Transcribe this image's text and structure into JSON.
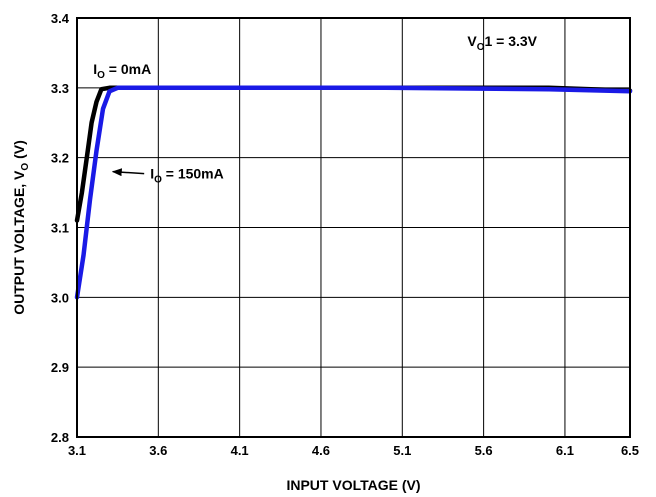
{
  "chart_data": {
    "type": "line",
    "xlabel": "INPUT VOLTAGE (V)",
    "ylabel": {
      "main": "OUTPUT VOLTAGE, V",
      "sub": "O",
      "unit": " (V)"
    },
    "xlim": [
      3.1,
      6.5
    ],
    "ylim": [
      2.8,
      3.4
    ],
    "xticks": [
      3.1,
      3.6,
      4.1,
      4.6,
      5.1,
      5.6,
      6.1,
      6.5
    ],
    "xtick_labels": [
      "3.1",
      "3.6",
      "4.1",
      "4.6",
      "5.1",
      "5.6",
      "6.1",
      "6.5"
    ],
    "yticks": [
      2.8,
      2.9,
      3.0,
      3.1,
      3.2,
      3.3,
      3.4
    ],
    "ytick_labels": [
      "2.8",
      "2.9",
      "3.0",
      "3.1",
      "3.2",
      "3.3",
      "3.4"
    ],
    "grid": true,
    "series": [
      {
        "name": {
          "main": "I",
          "sub": "O",
          "rest": " = 0mA"
        },
        "color": "#000000",
        "points": [
          [
            3.1,
            3.11
          ],
          [
            3.13,
            3.15
          ],
          [
            3.16,
            3.2
          ],
          [
            3.19,
            3.25
          ],
          [
            3.22,
            3.28
          ],
          [
            3.25,
            3.298
          ],
          [
            3.3,
            3.3
          ],
          [
            4.0,
            3.3
          ],
          [
            5.0,
            3.3
          ],
          [
            6.0,
            3.3
          ],
          [
            6.5,
            3.296
          ]
        ]
      },
      {
        "name": {
          "main": "I",
          "sub": "O",
          "rest": " = 150mA"
        },
        "color": "#1a1ae6",
        "points": [
          [
            3.1,
            3.0
          ],
          [
            3.14,
            3.06
          ],
          [
            3.18,
            3.14
          ],
          [
            3.22,
            3.21
          ],
          [
            3.26,
            3.27
          ],
          [
            3.3,
            3.295
          ],
          [
            3.35,
            3.3
          ],
          [
            4.0,
            3.3
          ],
          [
            5.0,
            3.3
          ],
          [
            6.0,
            3.298
          ],
          [
            6.5,
            3.295
          ]
        ]
      }
    ],
    "annotations": [
      {
        "main": "V",
        "sub": "O",
        "rest": "1 = 3.3V",
        "x": 5.5,
        "y": 3.36
      },
      {
        "main": "I",
        "sub": "O",
        "rest": " = 0mA",
        "x": 3.2,
        "y": 3.32
      },
      {
        "main": "I",
        "sub": "O",
        "rest": " = 150mA",
        "x": 3.55,
        "y": 3.17,
        "arrow_to": [
          3.32,
          3.18
        ]
      }
    ]
  }
}
